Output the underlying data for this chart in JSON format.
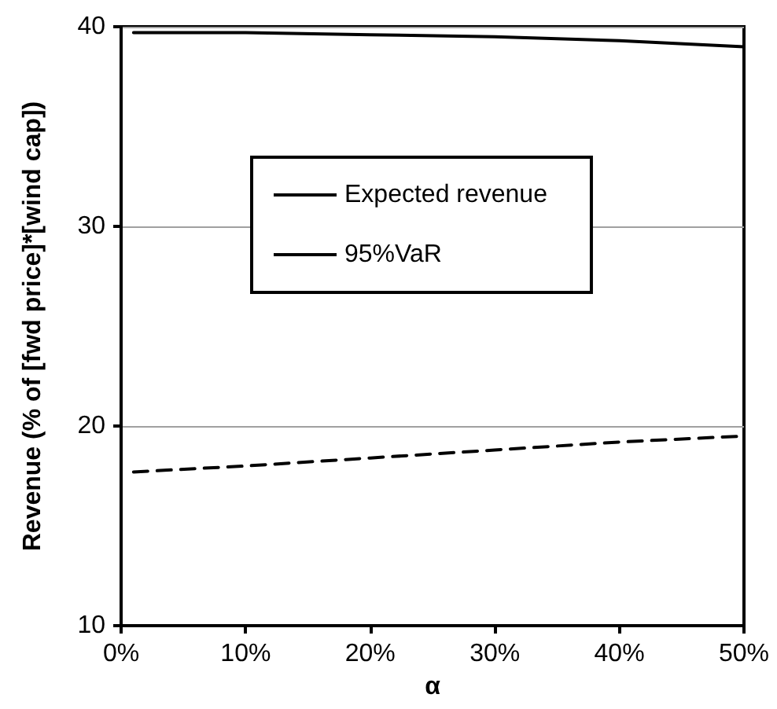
{
  "chart_data": {
    "type": "line",
    "xlabel": "α",
    "ylabel": "Revenue (% of [fwd price]*[wind cap])",
    "x": [
      1,
      10,
      20,
      30,
      40,
      50
    ],
    "series": [
      {
        "name": "Expected revenue",
        "color": "#000000",
        "line_style": "solid",
        "values": [
          39.7,
          39.7,
          39.6,
          39.5,
          39.3,
          39.0
        ]
      },
      {
        "name": "95%VaR",
        "color": "#000000",
        "line_style": "dashed",
        "values": [
          17.7,
          18.0,
          18.4,
          18.8,
          19.2,
          19.5
        ]
      }
    ],
    "xlim": [
      0,
      50
    ],
    "xticks": [
      {
        "value": 0,
        "label": "0%"
      },
      {
        "value": 10,
        "label": "10%"
      },
      {
        "value": 20,
        "label": "20%"
      },
      {
        "value": 30,
        "label": "30%"
      },
      {
        "value": 40,
        "label": "40%"
      },
      {
        "value": 50,
        "label": "50%"
      }
    ],
    "ylim": [
      10,
      40
    ],
    "yticks": [
      10,
      20,
      30,
      40
    ],
    "grid": "y",
    "legend": "top",
    "marker": "none"
  }
}
